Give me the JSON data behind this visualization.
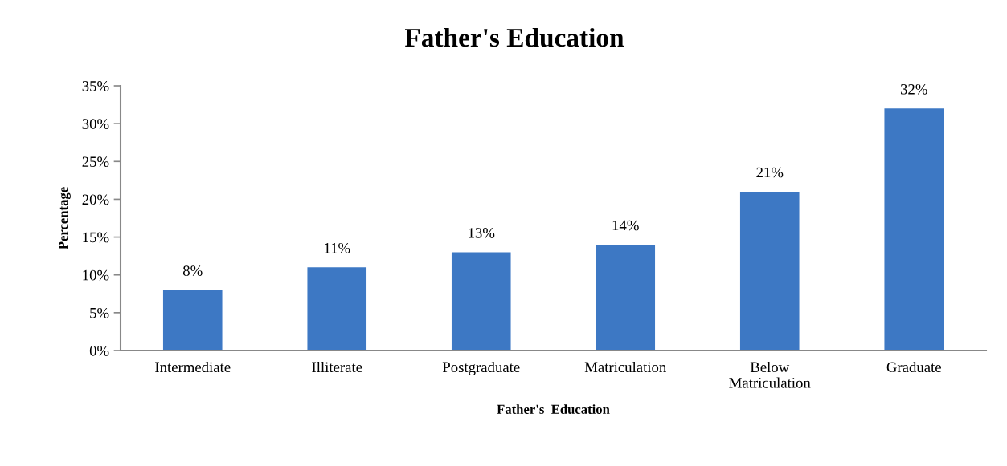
{
  "chart_data": {
    "type": "bar",
    "title": "Father's Education",
    "xlabel": "Father's  Education",
    "ylabel": "Percentage",
    "categories": [
      "Intermediate",
      "Illiterate",
      "Postgraduate",
      "Matriculation",
      "Below\nMatriculation",
      "Graduate"
    ],
    "values": [
      8,
      11,
      13,
      14,
      21,
      32
    ],
    "color": "#3d78c4",
    "value_labels": [
      "8%",
      "11%",
      "13%",
      "14%",
      "21%",
      "32%"
    ],
    "ylim": [
      0,
      35
    ],
    "yticks": [
      {
        "value": 0,
        "label": "0%"
      },
      {
        "value": 5,
        "label": "5%"
      },
      {
        "value": 10,
        "label": "10%"
      },
      {
        "value": 15,
        "label": "15%"
      },
      {
        "value": 20,
        "label": "20%"
      },
      {
        "value": 25,
        "label": "25%"
      },
      {
        "value": 30,
        "label": "30%"
      },
      {
        "value": 35,
        "label": "35%"
      }
    ],
    "grid": false,
    "legend": false
  }
}
